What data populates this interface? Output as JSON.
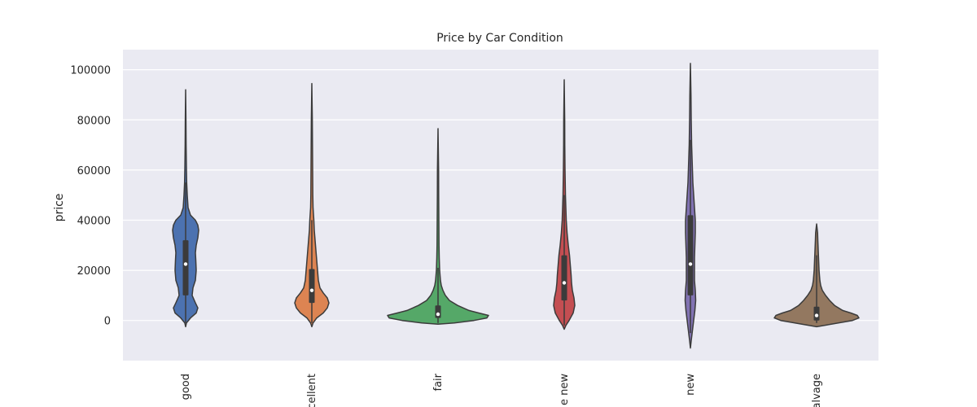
{
  "chart_data": {
    "type": "violin",
    "title": "Price by Car Condition",
    "xlabel": "",
    "ylabel": "price",
    "ylim": [
      -16000,
      108000
    ],
    "yticks": [
      0,
      20000,
      40000,
      60000,
      80000,
      100000
    ],
    "ytick_labels": [
      "0",
      "20000",
      "40000",
      "60000",
      "80000",
      "100000"
    ],
    "grid": true,
    "legend": "none",
    "categories": [
      "good",
      "excellent",
      "fair",
      "like new",
      "new",
      "salvage"
    ],
    "category_labels_visible": [
      "good",
      "xcellent",
      "fair",
      "e new",
      "new",
      "alvage"
    ],
    "series": [
      {
        "category": "good",
        "color": "#4C72B0",
        "min": -2500,
        "max": 92000,
        "q1": 10000,
        "median": 22500,
        "q3": 32000,
        "whisker_low": -1000,
        "whisker_high": 55000,
        "density": [
          [
            -2500,
            0
          ],
          [
            -1000,
            1
          ],
          [
            1000,
            6
          ],
          [
            3000,
            13
          ],
          [
            5000,
            15
          ],
          [
            7000,
            12
          ],
          [
            10000,
            8
          ],
          [
            13000,
            9
          ],
          [
            16000,
            12
          ],
          [
            20000,
            13
          ],
          [
            24000,
            12.5
          ],
          [
            27000,
            12
          ],
          [
            30000,
            13
          ],
          [
            33000,
            15
          ],
          [
            36000,
            16
          ],
          [
            38000,
            15
          ],
          [
            40000,
            12
          ],
          [
            42000,
            6
          ],
          [
            45000,
            3
          ],
          [
            50000,
            2
          ],
          [
            55000,
            1.3
          ],
          [
            60000,
            1
          ],
          [
            70000,
            0.6
          ],
          [
            80000,
            0.4
          ],
          [
            92000,
            0
          ]
        ]
      },
      {
        "category": "excellent",
        "color": "#DD8452",
        "min": -2500,
        "max": 94500,
        "q1": 7000,
        "median": 12000,
        "q3": 20500,
        "whisker_low": -1000,
        "whisker_high": 40000,
        "density": [
          [
            -2500,
            0
          ],
          [
            -1000,
            1.5
          ],
          [
            1000,
            6
          ],
          [
            3000,
            14
          ],
          [
            5000,
            19
          ],
          [
            7000,
            21
          ],
          [
            9000,
            19
          ],
          [
            11000,
            14
          ],
          [
            13000,
            10
          ],
          [
            16000,
            8
          ],
          [
            20000,
            7
          ],
          [
            24000,
            6
          ],
          [
            28000,
            5
          ],
          [
            32000,
            4
          ],
          [
            36000,
            3
          ],
          [
            40000,
            2.5
          ],
          [
            45000,
            1.5
          ],
          [
            50000,
            1.2
          ],
          [
            60000,
            1
          ],
          [
            70000,
            0.8
          ],
          [
            80000,
            0.6
          ],
          [
            94500,
            0
          ]
        ]
      },
      {
        "category": "fair",
        "color": "#55A868",
        "min": -1500,
        "max": 76500,
        "q1": 1000,
        "median": 2500,
        "q3": 6000,
        "whisker_low": -1000,
        "whisker_high": 21000,
        "density": [
          [
            -1500,
            0
          ],
          [
            -1000,
            20
          ],
          [
            0,
            44
          ],
          [
            1000,
            60
          ],
          [
            2000,
            62
          ],
          [
            3000,
            50
          ],
          [
            4000,
            38
          ],
          [
            6000,
            24
          ],
          [
            8000,
            14
          ],
          [
            10000,
            9
          ],
          [
            12000,
            6
          ],
          [
            14000,
            4
          ],
          [
            16000,
            3
          ],
          [
            20000,
            2
          ],
          [
            25000,
            1.5
          ],
          [
            30000,
            1.2
          ],
          [
            40000,
            1
          ],
          [
            50000,
            0.8
          ],
          [
            60000,
            0.7
          ],
          [
            76500,
            0
          ]
        ]
      },
      {
        "category": "like new",
        "color": "#C44E52",
        "min": -3500,
        "max": 96000,
        "q1": 8000,
        "median": 15000,
        "q3": 26000,
        "whisker_low": -2000,
        "whisker_high": 50000,
        "density": [
          [
            -3500,
            0
          ],
          [
            -2000,
            2
          ],
          [
            0,
            6
          ],
          [
            3000,
            11
          ],
          [
            6000,
            13
          ],
          [
            9000,
            12
          ],
          [
            12000,
            10
          ],
          [
            15000,
            9
          ],
          [
            18000,
            8.5
          ],
          [
            22000,
            7.5
          ],
          [
            26000,
            6.5
          ],
          [
            30000,
            5
          ],
          [
            35000,
            3.5
          ],
          [
            40000,
            2.5
          ],
          [
            45000,
            2
          ],
          [
            50000,
            1.5
          ],
          [
            60000,
            1
          ],
          [
            70000,
            0.7
          ],
          [
            80000,
            0.6
          ],
          [
            96000,
            0
          ]
        ]
      },
      {
        "category": "new",
        "color": "#8172B2",
        "min": -11000,
        "max": 102500,
        "q1": 10000,
        "median": 22500,
        "q3": 42000,
        "whisker_low": -5000,
        "whisker_high": 72000,
        "density": [
          [
            -11000,
            0
          ],
          [
            -8000,
            1
          ],
          [
            -4000,
            2.5
          ],
          [
            0,
            4
          ],
          [
            4000,
            5.5
          ],
          [
            8000,
            6.5
          ],
          [
            12000,
            6
          ],
          [
            16000,
            5
          ],
          [
            20000,
            5
          ],
          [
            25000,
            5
          ],
          [
            30000,
            5.5
          ],
          [
            35000,
            6
          ],
          [
            40000,
            6
          ],
          [
            45000,
            5
          ],
          [
            50000,
            4
          ],
          [
            55000,
            3
          ],
          [
            60000,
            2.5
          ],
          [
            70000,
            1.5
          ],
          [
            80000,
            1
          ],
          [
            90000,
            0.7
          ],
          [
            102500,
            0
          ]
        ]
      },
      {
        "category": "salvage",
        "color": "#937860",
        "min": -2500,
        "max": 38500,
        "q1": 0,
        "median": 2000,
        "q3": 5500,
        "whisker_low": -1000,
        "whisker_high": 26000,
        "density": [
          [
            -2500,
            0
          ],
          [
            -1500,
            18
          ],
          [
            0,
            44
          ],
          [
            1000,
            52
          ],
          [
            2000,
            50
          ],
          [
            3000,
            42
          ],
          [
            4000,
            32
          ],
          [
            6000,
            22
          ],
          [
            8000,
            16
          ],
          [
            10000,
            11
          ],
          [
            12000,
            7
          ],
          [
            14000,
            5
          ],
          [
            16000,
            4
          ],
          [
            20000,
            3
          ],
          [
            24000,
            2.5
          ],
          [
            28000,
            2
          ],
          [
            32000,
            1.5
          ],
          [
            35000,
            1.2
          ],
          [
            38500,
            0
          ]
        ]
      }
    ]
  }
}
